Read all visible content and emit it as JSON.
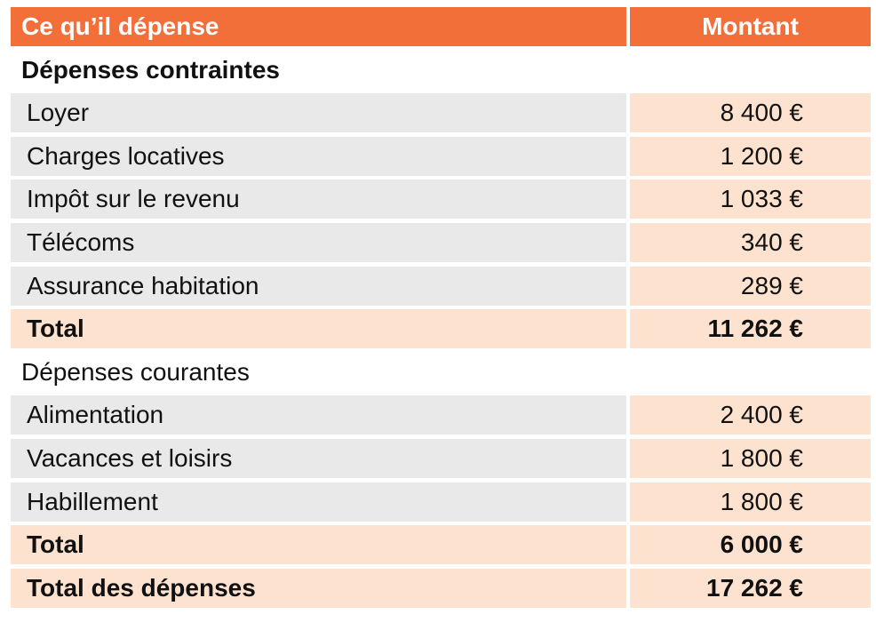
{
  "header": {
    "label": "Ce qu’il dépense",
    "amount": "Montant"
  },
  "sections": [
    {
      "title": "Dépenses contraintes",
      "items": [
        {
          "label": "Loyer",
          "amount": "8 400 €"
        },
        {
          "label": "Charges locatives",
          "amount": "1 200 €"
        },
        {
          "label": "Impôt sur le revenu",
          "amount": "1 033 €"
        },
        {
          "label": "Télécoms",
          "amount": "340 €"
        },
        {
          "label": "Assurance habitation",
          "amount": "289 €"
        }
      ],
      "total": {
        "label": "Total",
        "amount": "11 262 €"
      }
    },
    {
      "title": "Dépenses courantes",
      "items": [
        {
          "label": "Alimentation",
          "amount": "2 400 €"
        },
        {
          "label": "Vacances et loisirs",
          "amount": "1 800 €"
        },
        {
          "label": "Habillement",
          "amount": "1 800 €"
        }
      ],
      "total": {
        "label": "Total",
        "amount": "6 000 €"
      }
    }
  ],
  "grand_total": {
    "label": "Total des dépenses",
    "amount": "17 262 €"
  },
  "colors": {
    "header_bg": "#f26f3a",
    "label_cell_bg": "#e9e9e9",
    "amount_cell_bg": "#fde3cf"
  }
}
